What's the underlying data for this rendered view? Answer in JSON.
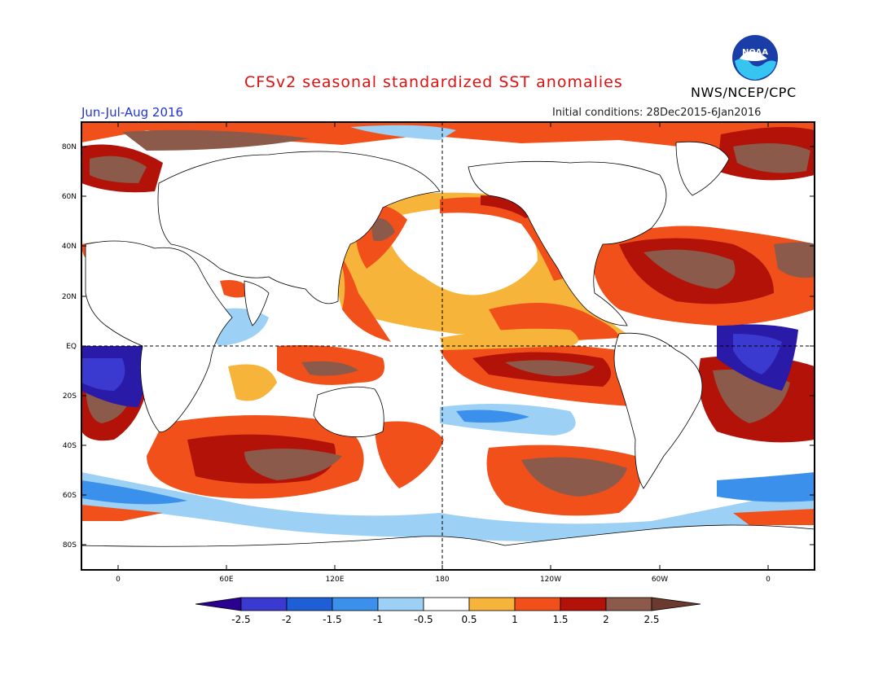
{
  "title": "CFSv2 seasonal standardized SST anomalies",
  "season": "Jun-Jul-Aug 2016",
  "initial_conditions": "Initial conditions: 28Dec2015-6Jan2016",
  "agency": "NWS/NCEP/CPC",
  "logo_text": "NOAA",
  "lat_labels": [
    "80N",
    "60N",
    "40N",
    "20N",
    "EQ",
    "20S",
    "40S",
    "60S",
    "80S"
  ],
  "lon_labels": [
    "0",
    "60E",
    "120E",
    "180",
    "120W",
    "60W",
    "0"
  ],
  "colorbar": {
    "labels": [
      "-2.5",
      "-2",
      "-1.5",
      "-1",
      "-0.5",
      "0.5",
      "1",
      "1.5",
      "2",
      "2.5"
    ],
    "colors": [
      "#2a1aa8",
      "#3a3ad0",
      "#1e5fd8",
      "#3a90ea",
      "#9dd0f5",
      "#ffffff",
      "#f7b43a",
      "#f2501a",
      "#b21208",
      "#8b5a4a"
    ],
    "low_color": "#2a0090",
    "high_color": "#6b3a2e"
  }
}
